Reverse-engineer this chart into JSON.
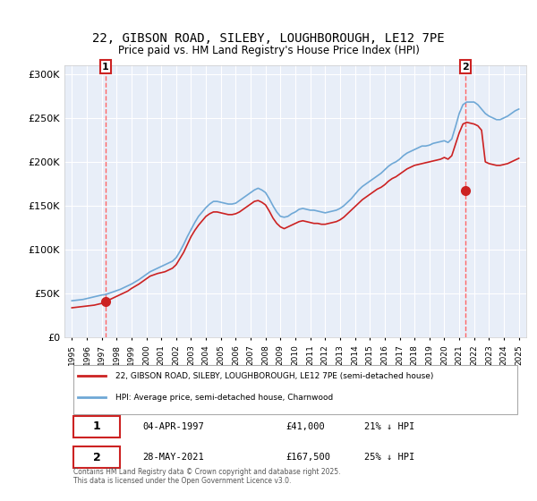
{
  "title_line1": "22, GIBSON ROAD, SILEBY, LOUGHBOROUGH, LE12 7PE",
  "title_line2": "Price paid vs. HM Land Registry's House Price Index (HPI)",
  "ylabel": "",
  "background_color": "#f0f4ff",
  "plot_bg_color": "#e8eef8",
  "y_ticks": [
    0,
    50000,
    100000,
    150000,
    200000,
    250000,
    300000
  ],
  "y_tick_labels": [
    "£0",
    "£50K",
    "£100K",
    "£150K",
    "£200K",
    "£250K",
    "£300K"
  ],
  "x_start_year": 1995,
  "x_end_year": 2025,
  "transaction1_date": 1997.26,
  "transaction1_price": 41000,
  "transaction1_label": "1",
  "transaction2_date": 2021.41,
  "transaction2_price": 167500,
  "transaction2_label": "2",
  "legend_line1": "22, GIBSON ROAD, SILEBY, LOUGHBOROUGH, LE12 7PE (semi-detached house)",
  "legend_line2": "HPI: Average price, semi-detached house, Charnwood",
  "annotation1": "1    04-APR-1997           £41,000          21% ↓ HPI",
  "annotation2": "2    28-MAY-2021           £167,500         25% ↓ HPI",
  "footer": "Contains HM Land Registry data © Crown copyright and database right 2025.\nThis data is licensed under the Open Government Licence v3.0.",
  "hpi_color": "#6fa8d6",
  "price_color": "#cc2222",
  "transaction_marker_color": "#cc2222",
  "vline_color": "#ff6666",
  "hpi_data": {
    "years": [
      1995.0,
      1995.25,
      1995.5,
      1995.75,
      1996.0,
      1996.25,
      1996.5,
      1996.75,
      1997.0,
      1997.25,
      1997.5,
      1997.75,
      1998.0,
      1998.25,
      1998.5,
      1998.75,
      1999.0,
      1999.25,
      1999.5,
      1999.75,
      2000.0,
      2000.25,
      2000.5,
      2000.75,
      2001.0,
      2001.25,
      2001.5,
      2001.75,
      2002.0,
      2002.25,
      2002.5,
      2002.75,
      2003.0,
      2003.25,
      2003.5,
      2003.75,
      2004.0,
      2004.25,
      2004.5,
      2004.75,
      2005.0,
      2005.25,
      2005.5,
      2005.75,
      2006.0,
      2006.25,
      2006.5,
      2006.75,
      2007.0,
      2007.25,
      2007.5,
      2007.75,
      2008.0,
      2008.25,
      2008.5,
      2008.75,
      2009.0,
      2009.25,
      2009.5,
      2009.75,
      2010.0,
      2010.25,
      2010.5,
      2010.75,
      2011.0,
      2011.25,
      2011.5,
      2011.75,
      2012.0,
      2012.25,
      2012.5,
      2012.75,
      2013.0,
      2013.25,
      2013.5,
      2013.75,
      2014.0,
      2014.25,
      2014.5,
      2014.75,
      2015.0,
      2015.25,
      2015.5,
      2015.75,
      2016.0,
      2016.25,
      2016.5,
      2016.75,
      2017.0,
      2017.25,
      2017.5,
      2017.75,
      2018.0,
      2018.25,
      2018.5,
      2018.75,
      2019.0,
      2019.25,
      2019.5,
      2019.75,
      2020.0,
      2020.25,
      2020.5,
      2020.75,
      2021.0,
      2021.25,
      2021.5,
      2021.75,
      2022.0,
      2022.25,
      2022.5,
      2022.75,
      2023.0,
      2023.25,
      2023.5,
      2023.75,
      2024.0,
      2024.25,
      2024.5,
      2024.75,
      2025.0
    ],
    "values": [
      42000,
      42500,
      43000,
      43500,
      44500,
      45500,
      46500,
      47500,
      48500,
      49000,
      50500,
      52000,
      53500,
      55000,
      57000,
      59000,
      61000,
      63500,
      66000,
      69000,
      72000,
      75000,
      77000,
      79000,
      81000,
      83000,
      85000,
      87000,
      91000,
      98000,
      106000,
      115000,
      123000,
      131000,
      138000,
      143000,
      148000,
      152000,
      155000,
      155000,
      154000,
      153000,
      152000,
      152000,
      153000,
      156000,
      159000,
      162000,
      165000,
      168000,
      170000,
      168000,
      165000,
      158000,
      150000,
      143000,
      138000,
      137000,
      138000,
      141000,
      143000,
      146000,
      147000,
      146000,
      145000,
      145000,
      144000,
      143000,
      142000,
      143000,
      144000,
      145000,
      147000,
      150000,
      154000,
      158000,
      163000,
      168000,
      172000,
      175000,
      178000,
      181000,
      184000,
      187000,
      191000,
      195000,
      198000,
      200000,
      203000,
      207000,
      210000,
      212000,
      214000,
      216000,
      218000,
      218000,
      219000,
      221000,
      222000,
      223000,
      224000,
      222000,
      226000,
      240000,
      255000,
      265000,
      268000,
      268000,
      268000,
      265000,
      260000,
      255000,
      252000,
      250000,
      248000,
      248000,
      250000,
      252000,
      255000,
      258000,
      260000
    ]
  },
  "price_data": {
    "years": [
      1995.0,
      1995.25,
      1995.5,
      1995.75,
      1996.0,
      1996.25,
      1996.5,
      1996.75,
      1997.0,
      1997.25,
      1997.5,
      1997.75,
      1998.0,
      1998.25,
      1998.5,
      1998.75,
      1999.0,
      1999.25,
      1999.5,
      1999.75,
      2000.0,
      2000.25,
      2000.5,
      2000.75,
      2001.0,
      2001.25,
      2001.5,
      2001.75,
      2002.0,
      2002.25,
      2002.5,
      2002.75,
      2003.0,
      2003.25,
      2003.5,
      2003.75,
      2004.0,
      2004.25,
      2004.5,
      2004.75,
      2005.0,
      2005.25,
      2005.5,
      2005.75,
      2006.0,
      2006.25,
      2006.5,
      2006.75,
      2007.0,
      2007.25,
      2007.5,
      2007.75,
      2008.0,
      2008.25,
      2008.5,
      2008.75,
      2009.0,
      2009.25,
      2009.5,
      2009.75,
      2010.0,
      2010.25,
      2010.5,
      2010.75,
      2011.0,
      2011.25,
      2011.5,
      2011.75,
      2012.0,
      2012.25,
      2012.5,
      2012.75,
      2013.0,
      2013.25,
      2013.5,
      2013.75,
      2014.0,
      2014.25,
      2014.5,
      2014.75,
      2015.0,
      2015.25,
      2015.5,
      2015.75,
      2016.0,
      2016.25,
      2016.5,
      2016.75,
      2017.0,
      2017.25,
      2017.5,
      2017.75,
      2018.0,
      2018.25,
      2018.5,
      2018.75,
      2019.0,
      2019.25,
      2019.5,
      2019.75,
      2020.0,
      2020.25,
      2020.5,
      2020.75,
      2021.0,
      2021.25,
      2021.5,
      2021.75,
      2022.0,
      2022.25,
      2022.5,
      2022.75,
      2023.0,
      2023.25,
      2023.5,
      2023.75,
      2024.0,
      2024.25,
      2024.5,
      2024.75,
      2025.0
    ],
    "values": [
      34000,
      34500,
      35000,
      35500,
      36000,
      36500,
      37000,
      38000,
      39000,
      41000,
      43000,
      45000,
      47000,
      49000,
      51000,
      53000,
      56000,
      58500,
      61000,
      64000,
      67000,
      70000,
      71500,
      73000,
      74000,
      75000,
      77000,
      79000,
      83000,
      90000,
      97000,
      106000,
      115000,
      122000,
      128000,
      133000,
      138000,
      141000,
      143000,
      143000,
      142000,
      141000,
      140000,
      140000,
      141000,
      143000,
      146000,
      149000,
      152000,
      155000,
      156000,
      154000,
      151000,
      144000,
      136000,
      130000,
      126000,
      124000,
      126000,
      128000,
      130000,
      132000,
      133000,
      132000,
      131000,
      130000,
      130000,
      129000,
      129000,
      130000,
      131000,
      132000,
      134000,
      137000,
      141000,
      145000,
      149000,
      153000,
      157000,
      160000,
      163000,
      166000,
      169000,
      171000,
      174000,
      178000,
      181000,
      183000,
      186000,
      189000,
      192000,
      194000,
      196000,
      197000,
      198000,
      199000,
      200000,
      201000,
      202000,
      203000,
      205000,
      203000,
      207000,
      220000,
      233000,
      243000,
      245000,
      244000,
      243000,
      241000,
      236000,
      200000,
      198000,
      197000,
      196000,
      196000,
      197000,
      198000,
      200000,
      202000,
      204000
    ]
  }
}
